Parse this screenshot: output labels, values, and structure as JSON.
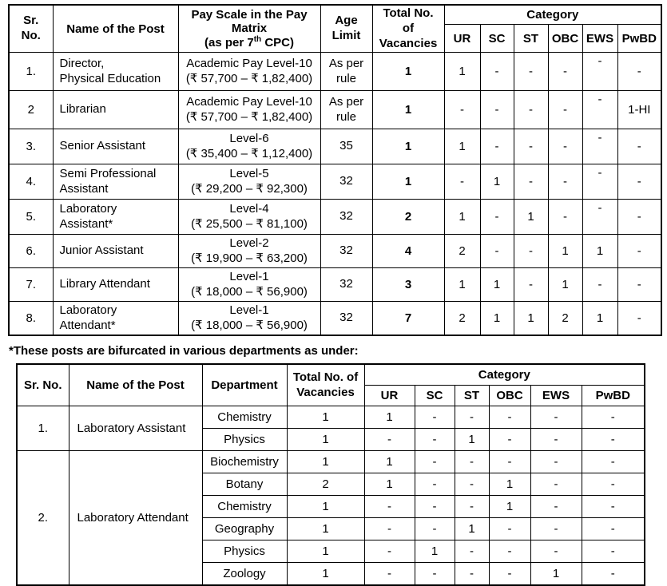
{
  "note_text": "*These posts are bifurcated in various departments as under:",
  "table1": {
    "col_headers": {
      "sr": "Sr.\nNo.",
      "name": "Name of the Post",
      "pay_l1": "Pay Scale in the Pay",
      "pay_l2": "Matrix",
      "pay_l3a": "(as per 7",
      "pay_l3_sup": "th",
      "pay_l3b": " CPC)",
      "age": "Age\nLimit",
      "total": "Total No.\nof\nVacancies",
      "category": "Category",
      "cats": [
        "UR",
        "SC",
        "ST",
        "OBC",
        "EWS",
        "PwBD"
      ]
    },
    "rows": [
      {
        "sr": "1.",
        "name": "Director,\nPhysical Education",
        "pay": "Academic Pay Level-10\n(₹ 57,700 – ₹ 1,82,400)",
        "age": "As per\nrule",
        "total": "1",
        "cats": [
          "1",
          "-",
          "-",
          "-",
          "-",
          "-"
        ]
      },
      {
        "sr": "2",
        "name": "Librarian",
        "pay": "Academic Pay Level-10\n(₹ 57,700 – ₹ 1,82,400)",
        "age": "As per\nrule",
        "total": "1",
        "cats": [
          "-",
          "-",
          "-",
          "-",
          "-",
          "1-HI"
        ]
      },
      {
        "sr": "3.",
        "name": "Senior Assistant",
        "pay": "Level-6\n(₹ 35,400 – ₹ 1,12,400)",
        "age": "35",
        "total": "1",
        "cats": [
          "1",
          "-",
          "-",
          "-",
          "-",
          "-"
        ]
      },
      {
        "sr": "4.",
        "name": "Semi Professional\nAssistant",
        "pay": "Level-5\n(₹ 29,200 – ₹ 92,300)",
        "age": "32",
        "total": "1",
        "cats": [
          "-",
          "1",
          "-",
          "-",
          "-",
          "-"
        ]
      },
      {
        "sr": "5.",
        "name": "Laboratory\nAssistant*",
        "pay": "Level-4\n(₹ 25,500 – ₹ 81,100)",
        "age": "32",
        "total": "2",
        "cats": [
          "1",
          "-",
          "1",
          "-",
          "-",
          "-"
        ]
      },
      {
        "sr": "6.",
        "name": "Junior Assistant",
        "pay": "Level-2\n(₹ 19,900 – ₹ 63,200)",
        "age": "32",
        "total": "4",
        "cats": [
          "2",
          "-",
          "-",
          "1",
          "1",
          "-"
        ]
      },
      {
        "sr": "7.",
        "name": "Library Attendant",
        "pay": "Level-1\n(₹ 18,000 – ₹ 56,900)",
        "age": "32",
        "total": "3",
        "cats": [
          "1",
          "1",
          "-",
          "1",
          "-",
          "-"
        ]
      },
      {
        "sr": "8.",
        "name": "Laboratory\nAttendant*",
        "pay": "Level-1\n(₹ 18,000 – ₹ 56,900)",
        "age": "32",
        "total": "7",
        "cats": [
          "2",
          "1",
          "1",
          "2",
          "1",
          "-"
        ]
      }
    ]
  },
  "table2": {
    "col_headers": {
      "sr": "Sr. No.",
      "name": "Name of the Post",
      "dept": "Department",
      "total": "Total No. of\nVacancies",
      "category": "Category",
      "cats": [
        "UR",
        "SC",
        "ST",
        "OBC",
        "EWS",
        "PwBD"
      ]
    },
    "groups": [
      {
        "sr": "1.",
        "name": "Laboratory Assistant",
        "rows": [
          {
            "dept": "Chemistry",
            "total": "1",
            "cats": [
              "1",
              "-",
              "-",
              "-",
              "-",
              "-"
            ]
          },
          {
            "dept": "Physics",
            "total": "1",
            "cats": [
              "-",
              "-",
              "1",
              "-",
              "-",
              "-"
            ]
          }
        ]
      },
      {
        "sr": "2.",
        "name": "Laboratory Attendant",
        "rows": [
          {
            "dept": "Biochemistry",
            "total": "1",
            "cats": [
              "1",
              "-",
              "-",
              "-",
              "-",
              "-"
            ]
          },
          {
            "dept": "Botany",
            "total": "2",
            "cats": [
              "1",
              "-",
              "-",
              "1",
              "-",
              "-"
            ]
          },
          {
            "dept": "Chemistry",
            "total": "1",
            "cats": [
              "-",
              "-",
              "-",
              "1",
              "-",
              "-"
            ]
          },
          {
            "dept": "Geography",
            "total": "1",
            "cats": [
              "-",
              "-",
              "1",
              "-",
              "-",
              "-"
            ]
          },
          {
            "dept": "Physics",
            "total": "1",
            "cats": [
              "-",
              "1",
              "-",
              "-",
              "-",
              "-"
            ]
          },
          {
            "dept": "Zoology",
            "total": "1",
            "cats": [
              "-",
              "-",
              "-",
              "-",
              "1",
              "-"
            ]
          }
        ]
      }
    ]
  }
}
